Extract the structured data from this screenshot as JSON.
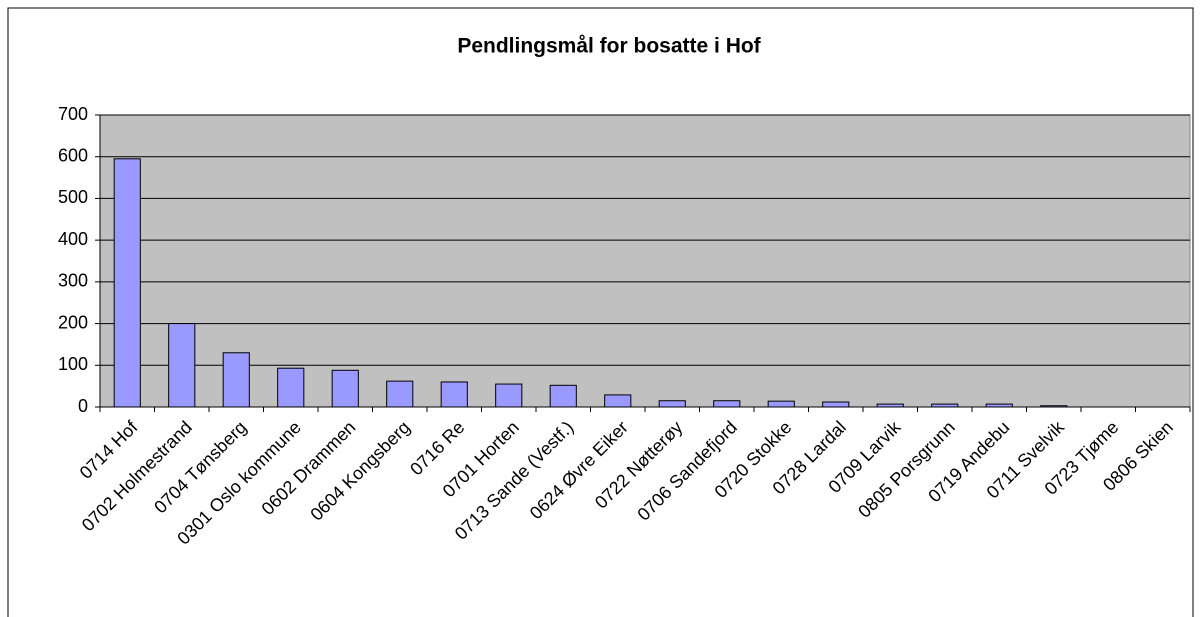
{
  "chart_data": {
    "type": "bar",
    "title": "Pendlingsmål for bosatte i Hof",
    "categories": [
      "0714 Hof",
      "0702 Holmestrand",
      "0704 Tønsberg",
      "0301 Oslo kommune",
      "0602 Drammen",
      "0604 Kongsberg",
      "0716 Re",
      "0701 Horten",
      "0713 Sande (Vestf.)",
      "0624 Øvre Eiker",
      "0722 Nøtterøy",
      "0706 Sandefjord",
      "0720 Stokke",
      "0728 Lardal",
      "0709 Larvik",
      "0805 Porsgrunn",
      "0719 Andebu",
      "0711 Svelvik",
      "0723 Tjøme",
      "0806 Skien"
    ],
    "values": [
      595,
      200,
      130,
      93,
      88,
      62,
      60,
      55,
      52,
      29,
      15,
      15,
      14,
      12,
      7,
      7,
      7,
      3,
      0,
      0
    ],
    "color": "#9999ff",
    "ylim": [
      0,
      700
    ],
    "yticks": [
      0,
      100,
      200,
      300,
      400,
      500,
      600,
      700
    ],
    "grid": true
  }
}
